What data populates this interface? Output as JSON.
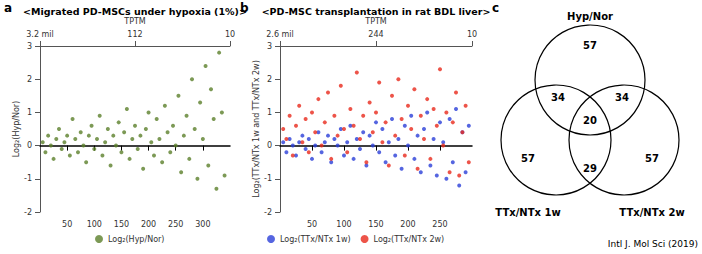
{
  "chart_data": [
    {
      "type": "scatter",
      "panel": "a",
      "title": "<Migrated PD-MSCs under hypoxia (1%)>",
      "x2label": "TPTM",
      "x2ticks": [
        {
          "value": 0,
          "label": "3.2 mil"
        },
        {
          "value": 175,
          "label": "112"
        },
        {
          "value": 350,
          "label": "10"
        }
      ],
      "ylabel": "Log₂(Hyp/Nor)",
      "xlim": [
        0,
        350
      ],
      "xticks": [
        50,
        100,
        150,
        200,
        250,
        300
      ],
      "ylim": [
        -2,
        3
      ],
      "yticks": [
        -2,
        -1,
        0,
        1,
        2,
        3
      ],
      "marker": "circle",
      "legend": "bottom",
      "x": [
        5,
        10,
        15,
        20,
        25,
        30,
        35,
        40,
        45,
        50,
        55,
        60,
        65,
        70,
        75,
        80,
        85,
        90,
        95,
        100,
        105,
        110,
        115,
        120,
        125,
        130,
        135,
        140,
        145,
        150,
        155,
        160,
        165,
        170,
        175,
        180,
        185,
        190,
        195,
        200,
        205,
        210,
        215,
        220,
        225,
        230,
        235,
        240,
        245,
        250,
        255,
        260,
        265,
        270,
        275,
        280,
        285,
        290,
        295,
        300,
        305,
        310,
        315,
        320,
        325,
        330,
        335,
        340
      ],
      "series": [
        {
          "name": "Log₂(Hyp/Nor)",
          "color": "#5b7f2b",
          "values": [
            0.1,
            -0.2,
            0.3,
            0.0,
            -0.4,
            0.2,
            0.5,
            -0.1,
            0.1,
            0.3,
            -0.3,
            0.8,
            0.2,
            -0.2,
            0.4,
            0.0,
            -0.5,
            0.3,
            0.6,
            -0.1,
            0.2,
            0.9,
            -0.3,
            0.1,
            0.5,
            -0.6,
            0.3,
            0.0,
            0.7,
            -0.2,
            0.4,
            1.1,
            -0.4,
            0.2,
            0.6,
            -0.1,
            0.3,
            -0.7,
            0.5,
            1.0,
            0.1,
            -0.3,
            0.8,
            0.2,
            -0.5,
            1.2,
            0.4,
            -0.2,
            0.6,
            0.0,
            1.5,
            -0.8,
            0.3,
            0.9,
            -0.4,
            2.0,
            0.5,
            -1.0,
            1.3,
            0.2,
            2.4,
            -0.6,
            1.7,
            0.8,
            -1.3,
            2.8,
            1.0,
            -0.9
          ]
        }
      ]
    },
    {
      "type": "scatter",
      "panel": "b",
      "title": "<PD-MSC transplantation in rat BDL liver>",
      "x2label": "TPTM",
      "x2ticks": [
        {
          "value": 0,
          "label": "2.6 mil"
        },
        {
          "value": 150,
          "label": "244"
        },
        {
          "value": 300,
          "label": "10"
        }
      ],
      "ylabel": "Log₂(TTx/NTx 1w and TTx/NTx 2w)",
      "xlim": [
        0,
        300
      ],
      "xticks": [
        50,
        100,
        150,
        200,
        250
      ],
      "ylim": [
        -2,
        3
      ],
      "yticks": [
        -2,
        -1,
        0,
        1,
        2,
        3
      ],
      "marker": "circle",
      "legend": "bottom",
      "x": [
        5,
        10,
        15,
        20,
        25,
        30,
        35,
        40,
        45,
        50,
        55,
        60,
        65,
        70,
        75,
        80,
        85,
        90,
        95,
        100,
        105,
        110,
        115,
        120,
        125,
        130,
        135,
        140,
        145,
        150,
        155,
        160,
        165,
        170,
        175,
        180,
        185,
        190,
        195,
        200,
        205,
        210,
        215,
        220,
        225,
        230,
        235,
        240,
        245,
        250,
        255,
        260,
        265,
        270,
        275,
        280,
        285,
        290,
        295
      ],
      "series": [
        {
          "name": "Log₂(TTx/NTx 1w)",
          "color": "#2b3fd8",
          "values": [
            0.1,
            -0.2,
            0.2,
            0.0,
            -0.3,
            0.1,
            0.3,
            -0.1,
            0.2,
            -0.4,
            0.0,
            0.4,
            -0.2,
            0.1,
            0.3,
            -0.5,
            0.2,
            0.0,
            0.5,
            -0.3,
            0.1,
            0.6,
            -0.4,
            0.2,
            -0.1,
            0.4,
            -0.6,
            0.3,
            0.0,
            0.7,
            -0.2,
            0.5,
            -0.5,
            0.1,
            0.8,
            -0.3,
            0.2,
            -0.7,
            0.6,
            0.0,
            0.9,
            -0.4,
            0.3,
            -0.8,
            0.5,
            1.0,
            -0.6,
            0.2,
            -0.9,
            0.7,
            0.1,
            -1.0,
            0.8,
            -0.5,
            1.1,
            -1.2,
            0.4,
            -0.8,
            0.6
          ]
        },
        {
          "name": "Log₂(TTx/NTx 2w)",
          "color": "#e8291c",
          "values": [
            0.5,
            0.2,
            0.9,
            -0.3,
            0.6,
            1.2,
            0.1,
            0.8,
            -0.2,
            1.0,
            0.4,
            1.4,
            0.0,
            0.7,
            1.6,
            -0.4,
            0.9,
            0.3,
            1.8,
            0.5,
            -0.2,
            1.1,
            0.6,
            2.2,
            0.2,
            0.9,
            -0.5,
            1.3,
            0.4,
            1.0,
            1.9,
            0.1,
            0.7,
            -0.6,
            1.5,
            0.3,
            2.0,
            0.8,
            -0.3,
            1.2,
            0.5,
            1.7,
            -0.7,
            0.9,
            0.2,
            1.4,
            -0.4,
            1.1,
            0.6,
            2.3,
            0.0,
            1.0,
            -0.8,
            0.7,
            1.6,
            -0.9,
            0.4,
            1.2,
            -0.5
          ]
        }
      ]
    },
    {
      "type": "venn",
      "panel": "c",
      "sets": [
        "Hyp/Nor",
        "TTx/NTx 1w",
        "TTx/NTx 2w"
      ],
      "regions": [
        {
          "sets": [
            "Hyp/Nor"
          ],
          "value": 57
        },
        {
          "sets": [
            "Hyp/Nor",
            "TTx/NTx 1w"
          ],
          "value": 34
        },
        {
          "sets": [
            "Hyp/Nor",
            "TTx/NTx 2w"
          ],
          "value": 34
        },
        {
          "sets": [
            "Hyp/Nor",
            "TTx/NTx 1w",
            "TTx/NTx 2w"
          ],
          "value": 20
        },
        {
          "sets": [
            "TTx/NTx 1w"
          ],
          "value": 57
        },
        {
          "sets": [
            "TTx/NTx 1w",
            "TTx/NTx 2w"
          ],
          "value": 29
        },
        {
          "sets": [
            "TTx/NTx 2w"
          ],
          "value": 57
        }
      ]
    }
  ],
  "source": "Intl J. Mol Sci (2019)"
}
